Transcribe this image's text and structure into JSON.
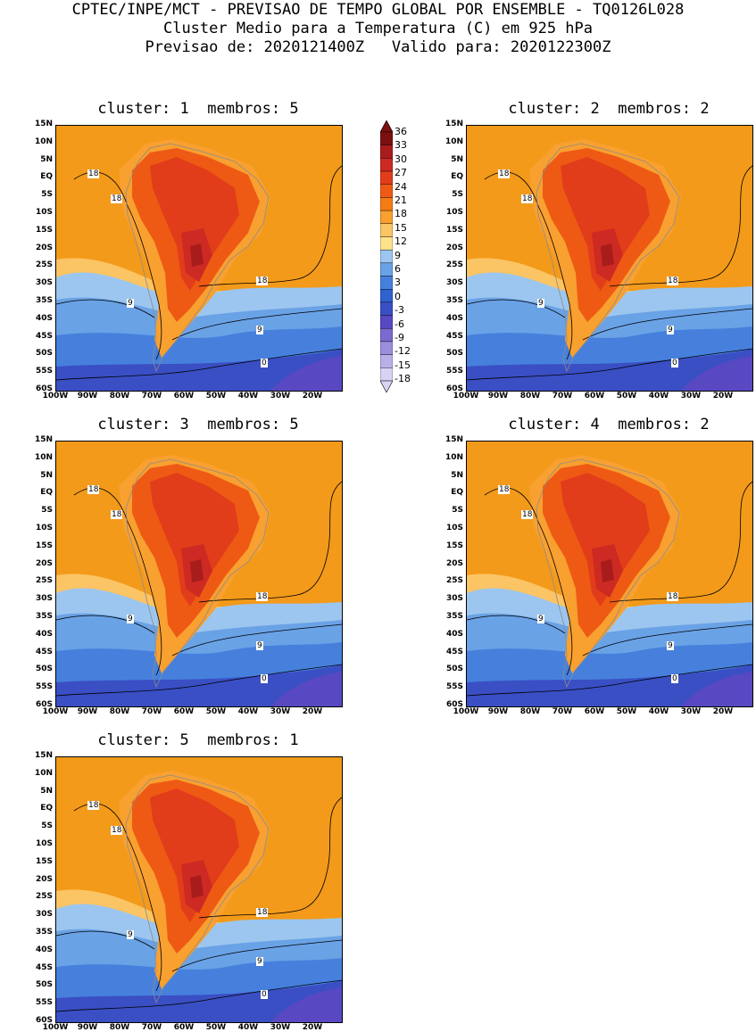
{
  "header": {
    "line1": "CPTEC/INPE/MCT - PREVISAO DE TEMPO GLOBAL POR ENSEMBLE - TQ0126L028",
    "line2": "Cluster Medio para a Temperatura (C) em 925 hPa",
    "line3": "Previsao de: 2020121400Z   Valido para: 2020122300Z"
  },
  "panels": [
    {
      "title": "cluster: 1  membros: 5"
    },
    {
      "title": "cluster: 2  membros: 2"
    },
    {
      "title": "cluster: 3  membros: 5"
    },
    {
      "title": "cluster: 4  membros: 2"
    },
    {
      "title": "cluster: 5  membros: 1"
    }
  ],
  "lat_labels": [
    "15N",
    "10N",
    "5N",
    "EQ",
    "5S",
    "10S",
    "15S",
    "20S",
    "25S",
    "30S",
    "35S",
    "40S",
    "45S",
    "50S",
    "55S",
    "60S"
  ],
  "lon_labels": [
    "100W",
    "90W",
    "80W",
    "70W",
    "60W",
    "50W",
    "40W",
    "30W",
    "20W"
  ],
  "contour_labels": [
    "18",
    "18",
    "9",
    "9",
    "0",
    "18"
  ],
  "colorbar": {
    "labels": [
      "36",
      "33",
      "30",
      "27",
      "24",
      "21",
      "18",
      "15",
      "12",
      "9",
      "6",
      "3",
      "0",
      "-3",
      "-6",
      "-9",
      "-12",
      "-15",
      "-18"
    ],
    "colors": [
      "#7a1010",
      "#a81c1c",
      "#cc2a22",
      "#e23d1a",
      "#ee5a14",
      "#f47c12",
      "#f8a030",
      "#fbc464",
      "#fde38c",
      "#9cc6ef",
      "#6aa2e6",
      "#4680dc",
      "#2f62cf",
      "#3a4fc4",
      "#5848c2",
      "#7a6ad0",
      "#9a8ede",
      "#b9b0ea",
      "#d8d2f4"
    ]
  },
  "colors": {
    "coast": "#8c8c8c",
    "contour": "#000000"
  }
}
